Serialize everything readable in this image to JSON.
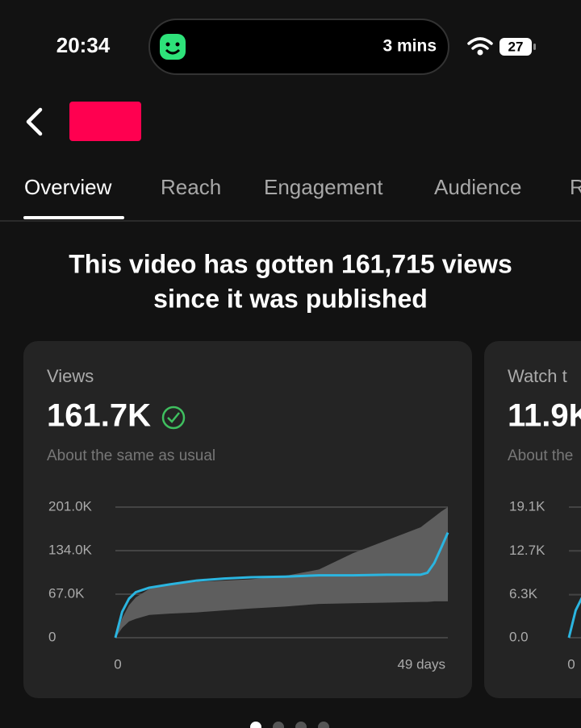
{
  "status_bar": {
    "time": "20:34",
    "activity": "3 mins",
    "battery": "27"
  },
  "tabs": [
    "Overview",
    "Reach",
    "Engagement",
    "Audience",
    "R"
  ],
  "headline": [
    "This video has gotten 161,715 views",
    "since it was published"
  ],
  "cards": [
    {
      "label": "Views",
      "value": "161.7K",
      "comparison": "About the same as usual",
      "chart": {
        "type": "line",
        "x": [
          0,
          1,
          2,
          3,
          5,
          8,
          12,
          16,
          20,
          25,
          30,
          35,
          40,
          45,
          46,
          47,
          48,
          49
        ],
        "series": [
          {
            "color": "#2bb5e0",
            "values": [
              0,
              40000,
              60000,
              70000,
              77000,
              82000,
              88000,
              91000,
              93000,
              94000,
              96000,
              96000,
              97000,
              97000,
              100000,
              115000,
              138000,
              161715
            ]
          }
        ],
        "band": {
          "color": "#5e5e5e",
          "lower": [
            0,
            15000,
            25000,
            29000,
            35000,
            37000,
            39000,
            42000,
            45000,
            48000,
            52000,
            53000,
            54000,
            55000,
            55000,
            56000,
            56000,
            56000
          ],
          "upper": [
            0,
            30000,
            50000,
            62000,
            75000,
            82000,
            86000,
            88000,
            90000,
            95000,
            105000,
            130000,
            150000,
            170000,
            178000,
            186000,
            194000,
            201000
          ]
        },
        "xlim": [
          0,
          49
        ],
        "xticks": [
          0,
          {
            "value": 49,
            "label": "49 days"
          }
        ],
        "ylim": [
          0,
          201000
        ],
        "yticks": [
          0,
          {
            "value": 67000,
            "label": "67.0K"
          },
          {
            "value": 134000,
            "label": "134.0K"
          },
          {
            "value": 201000,
            "label": "201.0K"
          }
        ],
        "grid": true
      }
    },
    {
      "label": "Watch t",
      "value": "11.9K",
      "comparison": "About the",
      "chart": {
        "type": "line",
        "x": [
          0,
          1,
          2
        ],
        "series": [
          {
            "color": "#2bb5e0",
            "values": [
              0,
              4000,
              6000
            ]
          }
        ],
        "xlim": [
          0,
          49
        ],
        "xticks": [
          0
        ],
        "ylim": [
          0,
          19100
        ],
        "yticks": [
          {
            "value": 0,
            "label": "0.0"
          },
          {
            "value": 6300,
            "label": "6.3K"
          },
          {
            "value": 12700,
            "label": "12.7K"
          },
          {
            "value": 19100,
            "label": "19.1K"
          }
        ],
        "grid": true
      }
    }
  ]
}
